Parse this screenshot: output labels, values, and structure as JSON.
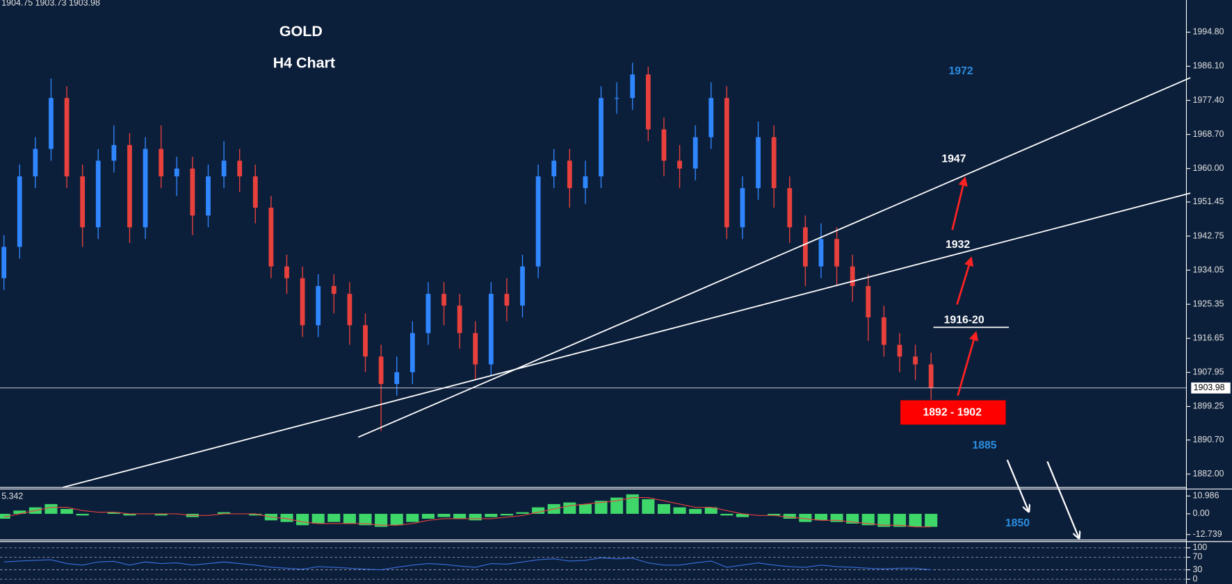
{
  "chart_data": [
    {
      "type": "candlestick",
      "title": "GOLD",
      "subtitle": "H4 Chart",
      "header": "1904.75 1903.73 1903.98",
      "up_color": "#2f86ff",
      "down_color": "#e8403c",
      "open": [
        1932,
        1940,
        1958,
        1965,
        1978,
        1958,
        1945,
        1962,
        1966,
        1945,
        1965,
        1958,
        1960,
        1948,
        1958,
        1962,
        1958,
        1950,
        1935,
        1932,
        1920,
        1930,
        1928,
        1920,
        1912,
        1905,
        1908,
        1918,
        1928,
        1925,
        1918,
        1910,
        1928,
        1925,
        1935,
        1958,
        1962,
        1955,
        1958,
        1978,
        1978,
        1984,
        1970,
        1962,
        1960,
        1968,
        1978,
        1945,
        1955,
        1968,
        1955,
        1945,
        1935,
        1942,
        1935,
        1930,
        1922,
        1915,
        1912,
        1910
      ],
      "high": [
        1943,
        1961,
        1968,
        1983,
        1981,
        1961,
        1965,
        1971,
        1969,
        1968,
        1971,
        1963,
        1963,
        1961,
        1967,
        1965,
        1961,
        1953,
        1938,
        1935,
        1933,
        1933,
        1931,
        1923,
        1915,
        1912,
        1921,
        1931,
        1931,
        1928,
        1921,
        1931,
        1932,
        1938,
        1961,
        1965,
        1965,
        1962,
        1981,
        1982,
        1987,
        1986,
        1973,
        1966,
        1971,
        1982,
        1981,
        1958,
        1972,
        1971,
        1958,
        1948,
        1946,
        1945,
        1938,
        1933,
        1925,
        1918,
        1915,
        1913
      ],
      "low": [
        1929,
        1937,
        1955,
        1962,
        1955,
        1940,
        1942,
        1959,
        1941,
        1942,
        1955,
        1953,
        1943,
        1945,
        1955,
        1954,
        1946,
        1932,
        1928,
        1917,
        1917,
        1923,
        1915,
        1908,
        1893,
        1902,
        1905,
        1915,
        1920,
        1914,
        1906,
        1907,
        1921,
        1922,
        1932,
        1955,
        1950,
        1951,
        1955,
        1974,
        1975,
        1967,
        1958,
        1955,
        1957,
        1965,
        1942,
        1942,
        1952,
        1950,
        1941,
        1930,
        1932,
        1930,
        1926,
        1916,
        1912,
        1908,
        1906,
        1901
      ],
      "close": [
        1940,
        1958,
        1965,
        1978,
        1958,
        1945,
        1962,
        1966,
        1945,
        1965,
        1958,
        1960,
        1948,
        1958,
        1962,
        1958,
        1950,
        1935,
        1932,
        1920,
        1930,
        1928,
        1920,
        1912,
        1905,
        1908,
        1918,
        1928,
        1925,
        1918,
        1910,
        1928,
        1925,
        1935,
        1958,
        1962,
        1955,
        1958,
        1978,
        1978,
        1984,
        1970,
        1962,
        1960,
        1968,
        1978,
        1945,
        1955,
        1968,
        1955,
        1945,
        1935,
        1942,
        1935,
        1930,
        1922,
        1915,
        1912,
        1910,
        1904
      ],
      "last_price": 1903.98,
      "ylim": [
        1878.6,
        2003.0
      ],
      "yticks": [
        {
          "value": 1994.8,
          "label": "1994.80"
        },
        {
          "value": 1986.1,
          "label": "1986.10"
        },
        {
          "value": 1977.4,
          "label": "1977.40"
        },
        {
          "value": 1968.7,
          "label": "1968.70"
        },
        {
          "value": 1960,
          "label": "1960.00"
        },
        {
          "value": 1951.45,
          "label": "1951.45"
        },
        {
          "value": 1942.75,
          "label": "1942.75"
        },
        {
          "value": 1934.05,
          "label": "1934.05"
        },
        {
          "value": 1925.35,
          "label": "1925.35"
        },
        {
          "value": 1916.65,
          "label": "1916.65"
        },
        {
          "value": 1907.95,
          "label": "1907.95"
        },
        {
          "value": 1899.25,
          "label": "1899.25"
        },
        {
          "value": 1890.7,
          "label": "1890.70"
        },
        {
          "value": 1882,
          "label": "1882.00"
        }
      ],
      "annotations": [
        "1972",
        "1947",
        "1932",
        "1916-20",
        "1892 - 1902",
        "1885",
        "1850"
      ]
    },
    {
      "type": "macd",
      "readout": "5.342",
      "histogram_color": "#3fd66a",
      "signal_color": "#e8403c",
      "histogram": [
        -3,
        2,
        4,
        6,
        3,
        -1,
        0,
        1,
        -1,
        0,
        -1,
        0,
        -2,
        0,
        1,
        0,
        -1,
        -4,
        -5,
        -7,
        -6,
        -5,
        -6,
        -7,
        -8,
        -7,
        -5,
        -3,
        -2,
        -3,
        -4,
        -2,
        -1,
        1,
        4,
        6,
        7,
        6,
        8,
        10,
        12,
        9,
        6,
        4,
        3,
        4,
        -1,
        -2,
        0,
        -1,
        -3,
        -5,
        -4,
        -5,
        -6,
        -7,
        -8,
        -8,
        -8,
        -8
      ],
      "signal": [
        -2,
        0,
        2,
        4,
        4,
        2,
        1,
        1,
        0,
        0,
        0,
        0,
        -1,
        -1,
        0,
        0,
        0,
        -2,
        -3,
        -5,
        -6,
        -6,
        -6,
        -6,
        -7,
        -7,
        -6,
        -4,
        -3,
        -3,
        -3,
        -3,
        -2,
        -1,
        1,
        3,
        5,
        6,
        7,
        8,
        10,
        10,
        8,
        6,
        4,
        4,
        2,
        0,
        -1,
        -1,
        -2,
        -3,
        -4,
        -4,
        -5,
        -6,
        -7,
        -7,
        -8,
        -8
      ],
      "ylim": [
        -16.1,
        15.3
      ],
      "yticks": [
        10.986,
        {
          "value": 0,
          "label": "0.00"
        },
        -12.739
      ]
    },
    {
      "type": "line",
      "color": "#3a6fe0",
      "values": [
        55,
        58,
        60,
        62,
        50,
        45,
        55,
        57,
        45,
        55,
        50,
        52,
        45,
        50,
        55,
        50,
        45,
        38,
        35,
        32,
        40,
        38,
        35,
        32,
        30,
        38,
        45,
        50,
        47,
        42,
        38,
        50,
        48,
        55,
        62,
        65,
        58,
        60,
        68,
        65,
        67,
        52,
        45,
        45,
        52,
        58,
        38,
        45,
        52,
        45,
        40,
        38,
        45,
        40,
        38,
        35,
        33,
        35,
        35,
        30
      ],
      "ylim": [
        -15,
        120
      ],
      "yticks": [
        100,
        70,
        30,
        0
      ]
    }
  ]
}
